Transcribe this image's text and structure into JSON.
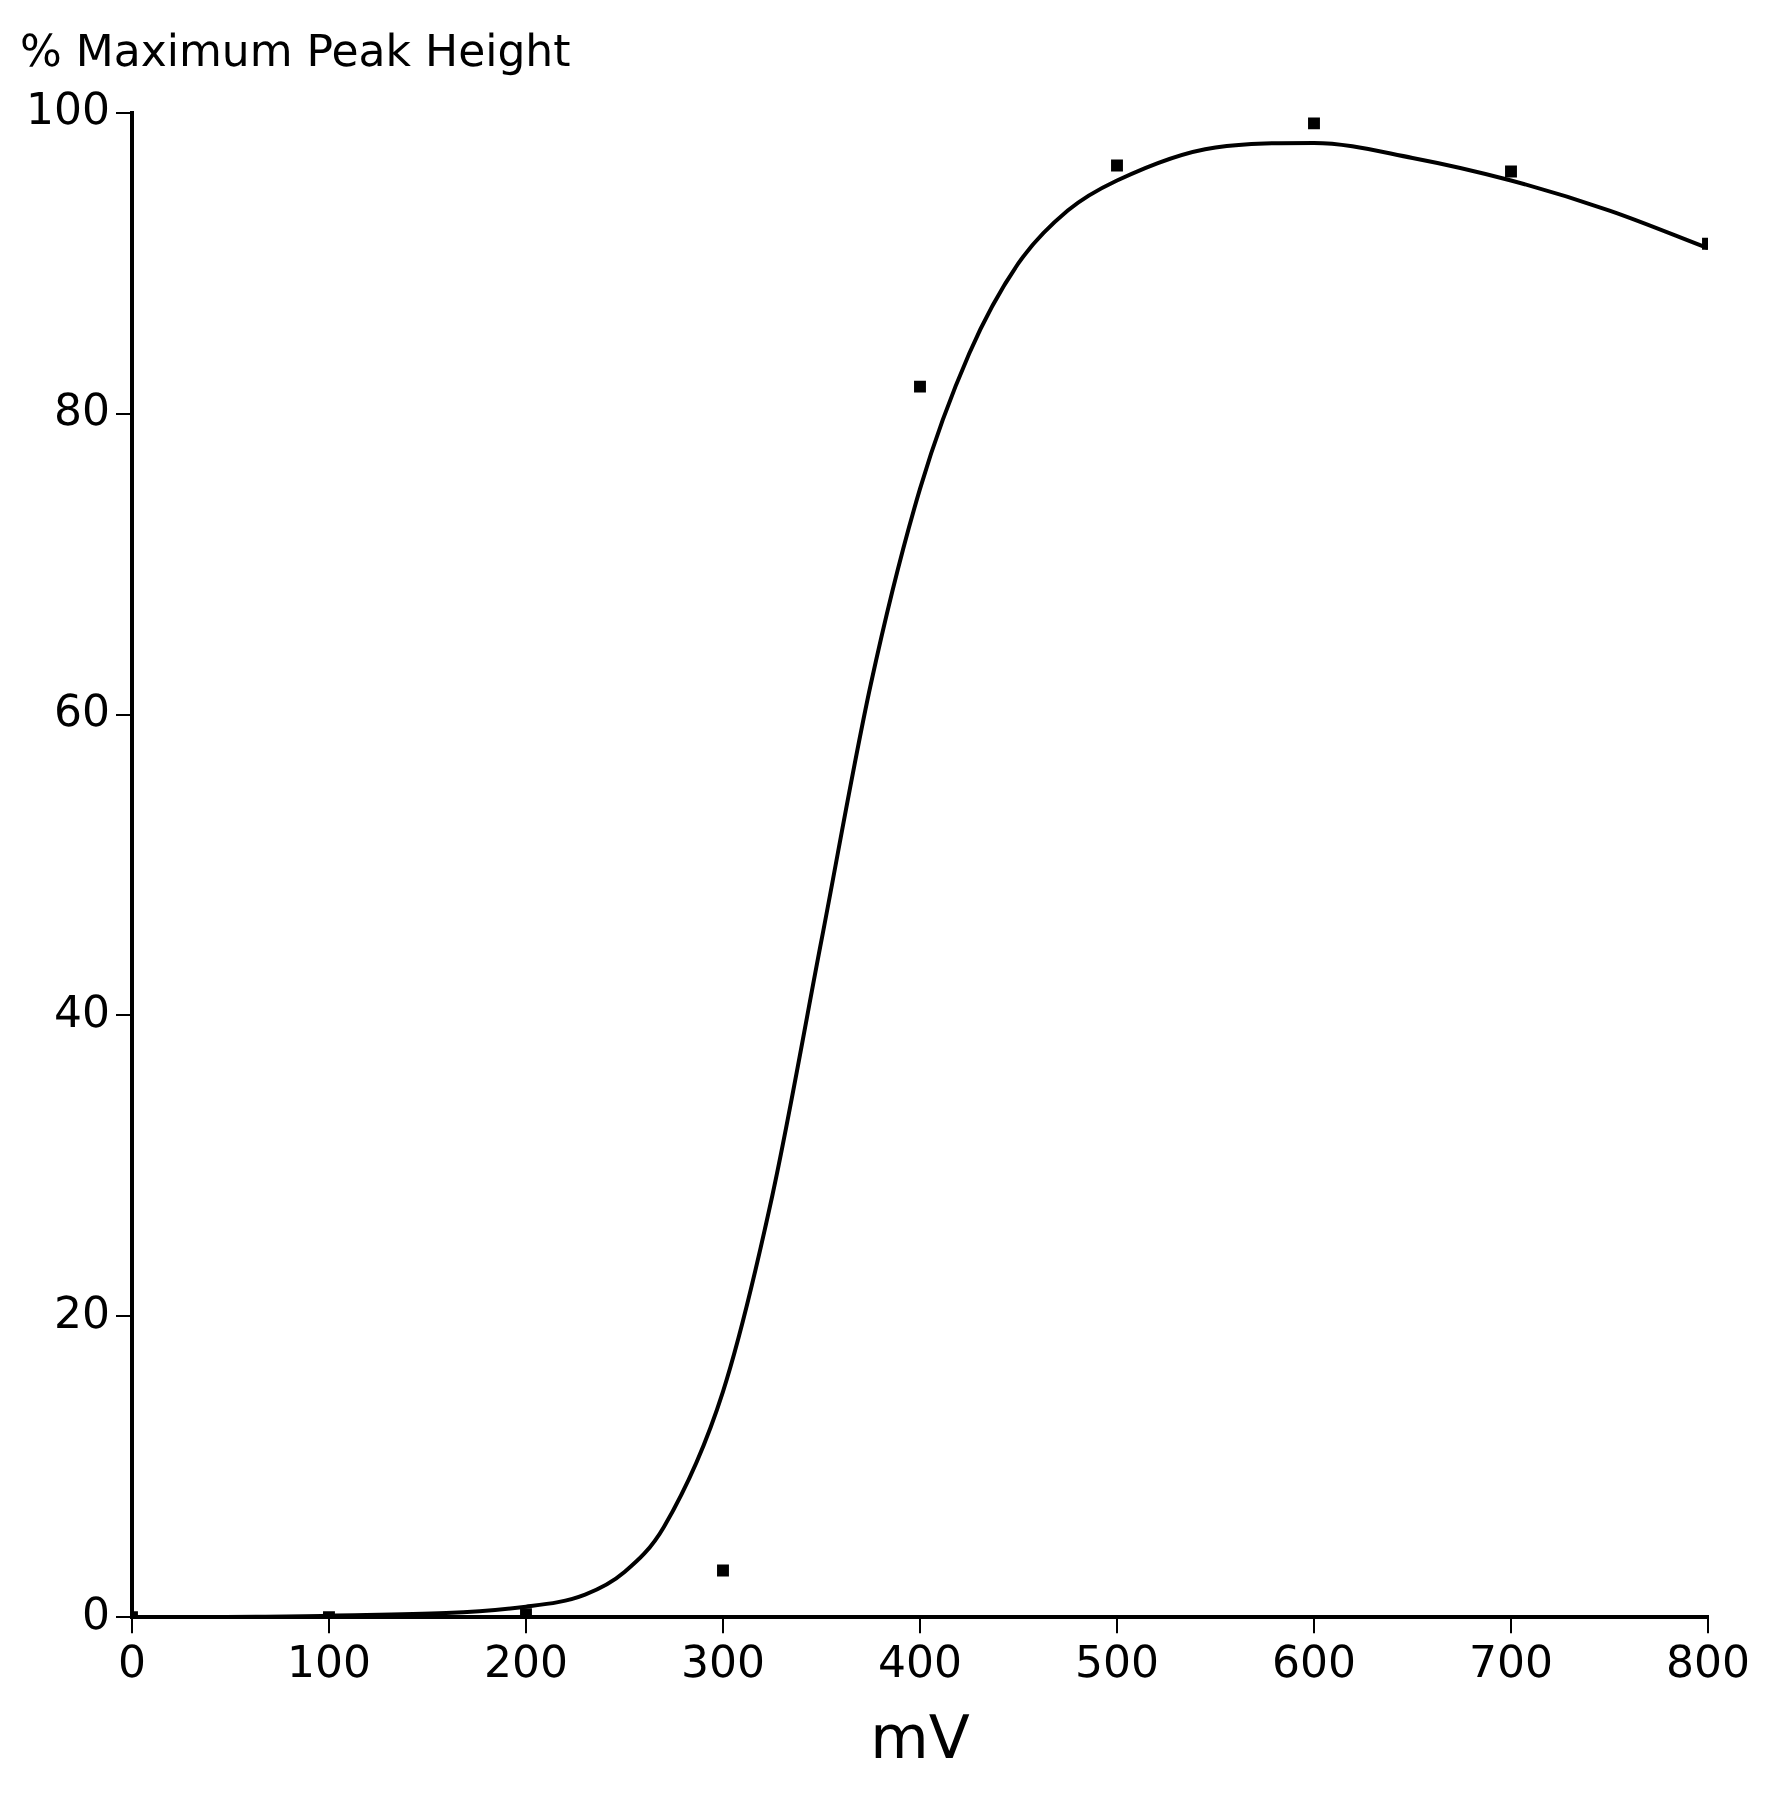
{
  "chart_data": {
    "type": "scatter",
    "xlabel": "mV",
    "ylabel": "% Maximum Peak Height",
    "xlim": [
      0,
      800
    ],
    "xticks": [
      0,
      100,
      200,
      300,
      400,
      500,
      600,
      700,
      800
    ],
    "ylim": [
      0,
      100
    ],
    "yticks": [
      0,
      20,
      40,
      60,
      80,
      100
    ],
    "grid": false,
    "legend": false,
    "marker": "square",
    "series": [
      {
        "color": "#000000",
        "x": [
          0,
          100,
          200,
          300,
          400,
          500,
          600,
          700,
          800
        ],
        "values": [
          0,
          0,
          0.2,
          3.1,
          81.8,
          96.5,
          99.3,
          96.1,
          91.3
        ]
      },
      {
        "type": "line",
        "color": "#000000",
        "marker": "none",
        "line_style": "solid",
        "x": [
          0,
          100,
          200,
          230,
          250,
          270,
          300,
          325,
          350,
          375,
          400,
          425,
          450,
          475,
          500,
          550,
          600,
          650,
          700,
          750,
          800
        ],
        "values": [
          0,
          0.1,
          0.7,
          1.5,
          3,
          6,
          15,
          28,
          45,
          62,
          75,
          84,
          90,
          93.5,
          95.5,
          97.7,
          98,
          97,
          95.5,
          93.5,
          91
        ]
      }
    ]
  }
}
